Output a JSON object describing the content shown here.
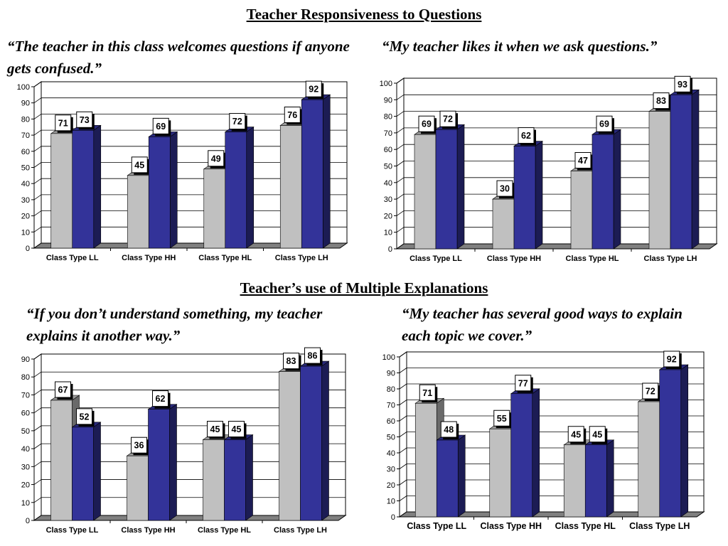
{
  "sections": {
    "top_title": "Teacher Responsiveness to Questions",
    "bottom_title": "Teacher’s use of Multiple Explanations"
  },
  "quotes": {
    "q1": "“The teacher in this class welcomes questions if anyone gets confused.”",
    "q2": "“My teacher likes it when we ask questions.”",
    "q3": "“If you don’t understand something, my teacher explains it another way.”",
    "q4": "“My teacher has several good ways to explain each topic we cover.”"
  },
  "colors": {
    "series_a": "#c0c0c0",
    "series_b": "#333399"
  },
  "chart_data": [
    {
      "type": "bar",
      "categories": [
        "Class Type LL",
        "Class Type HH",
        "Class Type HL",
        "Class Type LH"
      ],
      "series": [
        {
          "values": [
            71,
            45,
            49,
            76
          ]
        },
        {
          "values": [
            73,
            69,
            72,
            92
          ]
        }
      ],
      "ylim": [
        0,
        100
      ],
      "yticks": [
        0,
        10,
        20,
        30,
        40,
        50,
        60,
        70,
        80,
        90,
        100
      ],
      "grid": true,
      "data_labels": true
    },
    {
      "type": "bar",
      "categories": [
        "Class Type LL",
        "Class Type HH",
        "Class Type HL",
        "Class Type LH"
      ],
      "series": [
        {
          "values": [
            69,
            30,
            47,
            83
          ]
        },
        {
          "values": [
            72,
            62,
            69,
            93
          ]
        }
      ],
      "ylim": [
        0,
        100
      ],
      "yticks": [
        0,
        10,
        20,
        30,
        40,
        50,
        60,
        70,
        80,
        90,
        100
      ],
      "grid": true,
      "data_labels": true
    },
    {
      "type": "bar",
      "categories": [
        "Class Type LL",
        "Class Type HH",
        "Class Type HL",
        "Class Type LH"
      ],
      "series": [
        {
          "values": [
            67,
            36,
            45,
            83
          ]
        },
        {
          "values": [
            52,
            62,
            45,
            86
          ]
        }
      ],
      "ylim": [
        0,
        90
      ],
      "yticks": [
        0,
        10,
        20,
        30,
        40,
        50,
        60,
        70,
        80,
        90
      ],
      "grid": true,
      "data_labels": true
    },
    {
      "type": "bar",
      "categories": [
        "Class Type LL",
        "Class Type HH",
        "Class Type HL",
        "Class Type LH"
      ],
      "series": [
        {
          "values": [
            71,
            55,
            45,
            72
          ]
        },
        {
          "values": [
            48,
            77,
            45,
            92
          ]
        }
      ],
      "ylim": [
        0,
        100
      ],
      "yticks": [
        0,
        10,
        20,
        30,
        40,
        50,
        60,
        70,
        80,
        90,
        100
      ],
      "grid": true,
      "data_labels": true
    }
  ]
}
